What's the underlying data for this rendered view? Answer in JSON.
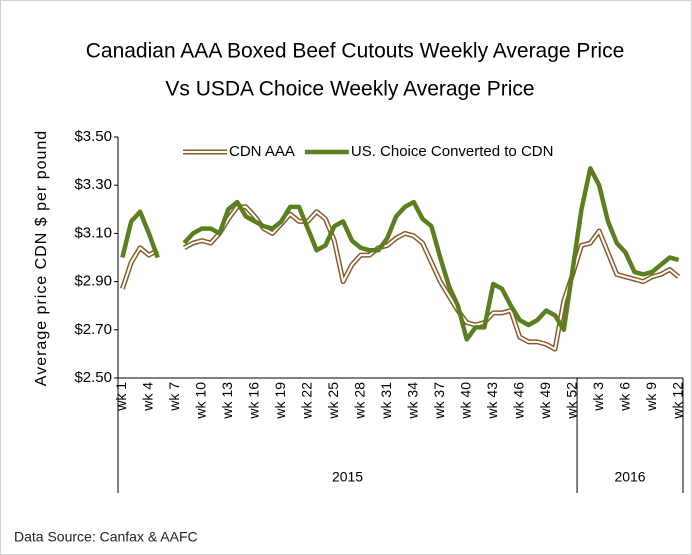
{
  "chart_data": {
    "type": "line",
    "title": [
      "Canadian AAA Boxed Beef Cutouts Weekly Average Price",
      "Vs USDA Choice Weekly Average Price"
    ],
    "y_label": "Average price CDN $ per pound",
    "source": "Data Source: Canfax & AAFC",
    "categories": [
      "wk 1",
      null,
      null,
      "wk 4",
      null,
      null,
      "wk 7",
      null,
      null,
      "wk 10",
      null,
      null,
      "wk 13",
      null,
      null,
      "wk 16",
      null,
      null,
      "wk 19",
      null,
      null,
      "wk 22",
      null,
      null,
      "wk 25",
      null,
      null,
      "wk 28",
      null,
      null,
      "wk 31",
      null,
      null,
      "wk 34",
      null,
      null,
      "wk 37",
      null,
      null,
      "wk 40",
      null,
      null,
      "wk 43",
      null,
      null,
      "wk 46",
      null,
      null,
      "wk 49",
      null,
      null,
      "wk 52",
      null,
      null,
      "wk 3",
      null,
      null,
      "wk 6",
      null,
      null,
      "wk 9",
      null,
      null,
      "wk 12"
    ],
    "groups": [
      "2015",
      "2016"
    ],
    "group_sizes": [
      52,
      12
    ],
    "ylim": [
      2.5,
      3.5
    ],
    "yticks": [
      {
        "value": 2.5,
        "label": "$2.50"
      },
      {
        "value": 2.7,
        "label": "$2.70"
      },
      {
        "value": 2.9,
        "label": "$2.90"
      },
      {
        "value": 3.1,
        "label": "$3.10"
      },
      {
        "value": 3.3,
        "label": "$3.30"
      },
      {
        "value": 3.5,
        "label": "$3.50"
      }
    ],
    "legend": "top",
    "series": [
      {
        "name": "CDN AAA",
        "color": "#8b5a2b",
        "style": "double",
        "values": [
          2.87,
          2.98,
          3.04,
          3.01,
          3.03,
          null,
          null,
          3.04,
          3.06,
          3.07,
          3.06,
          3.1,
          3.16,
          3.21,
          3.21,
          3.17,
          3.12,
          3.1,
          3.14,
          3.18,
          3.15,
          3.15,
          3.19,
          3.16,
          3.07,
          2.9,
          2.97,
          3.01,
          3.01,
          3.04,
          3.05,
          3.08,
          3.1,
          3.09,
          3.06,
          2.98,
          2.9,
          2.84,
          2.78,
          2.73,
          2.72,
          2.73,
          2.77,
          2.77,
          2.78,
          2.67,
          2.65,
          2.65,
          2.64,
          2.62,
          2.82,
          2.93,
          3.05,
          3.06,
          3.11,
          3.02,
          2.93,
          2.92,
          2.91,
          2.9,
          2.92,
          2.93,
          2.95,
          2.92
        ]
      },
      {
        "name": "US. Choice Converted to CDN",
        "color": "#5a7f1e",
        "style": "solid",
        "values": [
          3.0,
          3.15,
          3.19,
          3.1,
          3.0,
          null,
          null,
          3.06,
          3.1,
          3.12,
          3.12,
          3.1,
          3.2,
          3.23,
          3.17,
          3.15,
          3.13,
          3.12,
          3.15,
          3.21,
          3.21,
          3.12,
          3.03,
          3.05,
          3.13,
          3.15,
          3.07,
          3.04,
          3.03,
          3.03,
          3.08,
          3.17,
          3.21,
          3.23,
          3.16,
          3.13,
          3.0,
          2.88,
          2.8,
          2.66,
          2.71,
          2.71,
          2.89,
          2.87,
          2.8,
          2.74,
          2.72,
          2.74,
          2.78,
          2.76,
          2.7,
          2.95,
          3.2,
          3.37,
          3.3,
          3.15,
          3.06,
          3.02,
          2.94,
          2.93,
          2.94,
          2.97,
          3.0,
          2.99
        ]
      }
    ]
  }
}
